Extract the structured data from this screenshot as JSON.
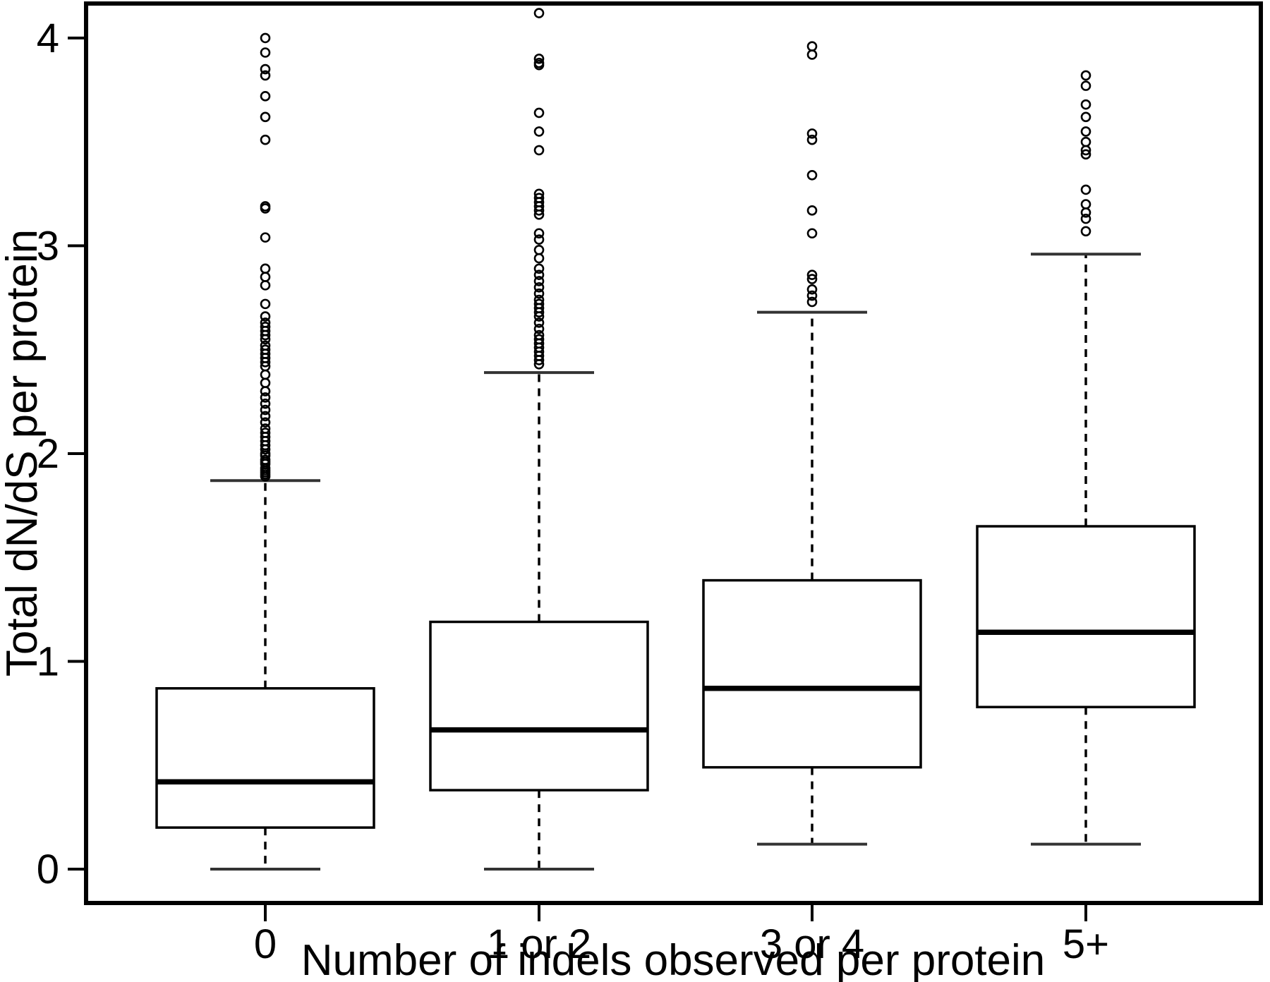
{
  "figure": {
    "background": "#ffffff",
    "line_color": "#000000",
    "box_fill": "#ffffff"
  },
  "chart_data": {
    "type": "boxplot",
    "title": "",
    "xlabel": "Number of indels observed per protein",
    "ylabel": "Total dN/dS per protein",
    "categories": [
      "0",
      "1 or 2",
      "3 or 4",
      "5+"
    ],
    "yticks": [
      "0",
      "1",
      "2",
      "3",
      "4"
    ],
    "ytick_values": [
      0,
      1,
      2,
      3,
      4
    ],
    "ylim": [
      -0.163,
      4.166
    ],
    "grid": false,
    "legend": "none",
    "series": [
      {
        "name": "0",
        "whisker_low": 0.0,
        "q1": 0.2,
        "median": 0.42,
        "q3": 0.87,
        "whisker_high": 1.87,
        "outliers": [
          4.0,
          3.93,
          3.85,
          3.82,
          3.72,
          3.62,
          3.51,
          3.19,
          3.18,
          3.04,
          2.89,
          2.85,
          2.81,
          2.72,
          2.66,
          2.63,
          2.61,
          2.59,
          2.57,
          2.55,
          2.52,
          2.5,
          2.48,
          2.46,
          2.44,
          2.42,
          2.38,
          2.34,
          2.3,
          2.27,
          2.24,
          2.21,
          2.18,
          2.15,
          2.12,
          2.1,
          2.08,
          2.06,
          2.04,
          2.02,
          2.0,
          1.99,
          1.97,
          1.96,
          1.95,
          1.93,
          1.92,
          1.91,
          1.9,
          1.89
        ]
      },
      {
        "name": "1 or 2",
        "whisker_low": 0.0,
        "q1": 0.38,
        "median": 0.67,
        "q3": 1.19,
        "whisker_high": 2.39,
        "outliers": [
          4.12,
          3.9,
          3.88,
          3.87,
          3.64,
          3.55,
          3.46,
          3.25,
          3.23,
          3.21,
          3.19,
          3.17,
          3.15,
          3.06,
          3.03,
          2.98,
          2.94,
          2.89,
          2.86,
          2.83,
          2.8,
          2.77,
          2.74,
          2.72,
          2.7,
          2.68,
          2.66,
          2.63,
          2.6,
          2.57,
          2.55,
          2.53,
          2.51,
          2.49,
          2.47,
          2.45,
          2.43
        ]
      },
      {
        "name": "3 or 4",
        "whisker_low": 0.12,
        "q1": 0.49,
        "median": 0.87,
        "q3": 1.39,
        "whisker_high": 2.68,
        "outliers": [
          3.96,
          3.92,
          3.54,
          3.51,
          3.34,
          3.17,
          3.06,
          2.86,
          2.84,
          2.79,
          2.76,
          2.73
        ]
      },
      {
        "name": "5+",
        "whisker_low": 0.12,
        "q1": 0.78,
        "median": 1.14,
        "q3": 1.65,
        "whisker_high": 2.96,
        "outliers": [
          3.82,
          3.77,
          3.68,
          3.62,
          3.55,
          3.5,
          3.46,
          3.44,
          3.27,
          3.2,
          3.16,
          3.13,
          3.07
        ]
      }
    ]
  }
}
